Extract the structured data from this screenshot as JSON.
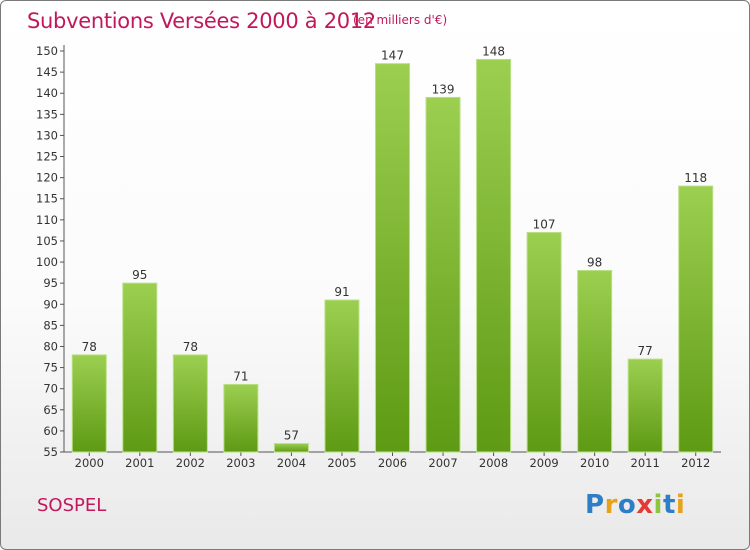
{
  "header": {
    "title": "Subventions Versées 2000 à 2012",
    "unit": "(en milliers d'€)"
  },
  "footer": {
    "commune": "SOSPEL",
    "logo": "Proxiti",
    "logo_colors": [
      "#2e7dc7",
      "#e8a21a",
      "#2e7dc7",
      "#e53935",
      "#8cc63f",
      "#2e7dc7",
      "#e8a21a"
    ]
  },
  "colors": {
    "bar_light": "#9ccf50",
    "bar_dark": "#5e9a14",
    "title": "#c2185b"
  },
  "chart_data": {
    "type": "bar",
    "categories": [
      "2000",
      "2001",
      "2002",
      "2003",
      "2004",
      "2005",
      "2006",
      "2007",
      "2008",
      "2009",
      "2010",
      "2011",
      "2012"
    ],
    "values": [
      78,
      95,
      78,
      71,
      57,
      91,
      147,
      139,
      148,
      107,
      98,
      77,
      118
    ],
    "ylim": [
      55,
      150
    ],
    "yticks": [
      55,
      60,
      65,
      70,
      75,
      80,
      85,
      90,
      95,
      100,
      105,
      110,
      115,
      120,
      125,
      130,
      135,
      140,
      145,
      150
    ],
    "grid": false,
    "data_labels": true
  }
}
